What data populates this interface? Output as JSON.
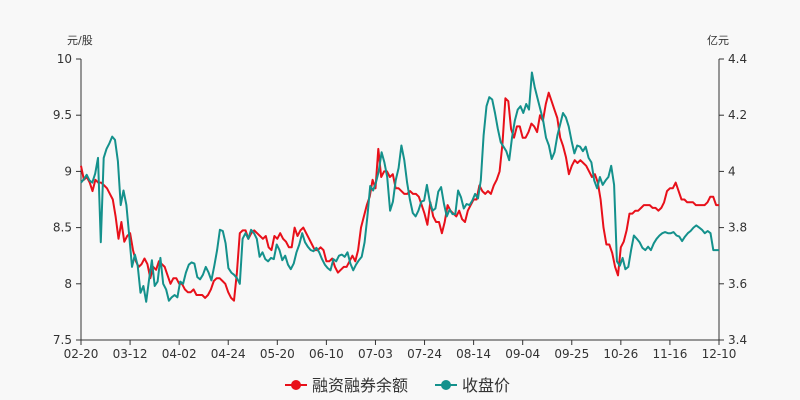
{
  "chart_data": {
    "type": "line",
    "title": "",
    "left_axis": {
      "unit": "元/股",
      "ylim": [
        7.5,
        10
      ],
      "ticks": [
        "7.5",
        "8",
        "8.5",
        "9",
        "9.5",
        "10"
      ]
    },
    "right_axis": {
      "unit": "亿元",
      "ylim": [
        3.4,
        4.4
      ],
      "ticks": [
        "3.4",
        "3.6",
        "3.8",
        "4",
        "4.2",
        "4.4"
      ]
    },
    "x_tick_labels": [
      "02-20",
      "03-12",
      "04-02",
      "04-24",
      "05-20",
      "06-10",
      "07-03",
      "07-24",
      "08-14",
      "09-04",
      "09-25",
      "10-26",
      "11-16",
      "12-10"
    ],
    "grid": false,
    "legend_position": "bottom-center",
    "series": [
      {
        "name": "融资融券余额",
        "axis": "right",
        "color": "#e8101a",
        "values": [
          4.02,
          3.97,
          3.98,
          3.96,
          3.93,
          3.97,
          3.96,
          3.96,
          3.95,
          3.94,
          3.92,
          3.9,
          3.84,
          3.76,
          3.82,
          3.75,
          3.77,
          3.78,
          3.72,
          3.68,
          3.66,
          3.67,
          3.69,
          3.67,
          3.62,
          3.66,
          3.65,
          3.68,
          3.67,
          3.66,
          3.63,
          3.6,
          3.62,
          3.62,
          3.6,
          3.6,
          3.58,
          3.57,
          3.57,
          3.58,
          3.56,
          3.56,
          3.56,
          3.55,
          3.56,
          3.58,
          3.61,
          3.62,
          3.62,
          3.61,
          3.6,
          3.57,
          3.55,
          3.54,
          3.64,
          3.78,
          3.79,
          3.79,
          3.76,
          3.78,
          3.79,
          3.78,
          3.77,
          3.76,
          3.77,
          3.73,
          3.72,
          3.77,
          3.76,
          3.78,
          3.76,
          3.75,
          3.73,
          3.73,
          3.8,
          3.77,
          3.79,
          3.8,
          3.78,
          3.76,
          3.74,
          3.72,
          3.72,
          3.73,
          3.72,
          3.68,
          3.68,
          3.69,
          3.66,
          3.64,
          3.65,
          3.66,
          3.66,
          3.68,
          3.7,
          3.68,
          3.72,
          3.8,
          3.84,
          3.88,
          3.91,
          3.97,
          3.94,
          4.08,
          3.98,
          4.0,
          4.0,
          3.98,
          3.99,
          3.94,
          3.94,
          3.93,
          3.92,
          3.92,
          3.93,
          3.92,
          3.92,
          3.91,
          3.88,
          3.85,
          3.81,
          3.89,
          3.84,
          3.82,
          3.82,
          3.78,
          3.82,
          3.88,
          3.86,
          3.85,
          3.84,
          3.86,
          3.83,
          3.82,
          3.86,
          3.88,
          3.9,
          3.9,
          3.95,
          3.93,
          3.92,
          3.93,
          3.92,
          3.95,
          3.97,
          4.0,
          4.1,
          4.26,
          4.25,
          4.15,
          4.12,
          4.16,
          4.16,
          4.12,
          4.12,
          4.14,
          4.17,
          4.16,
          4.14,
          4.2,
          4.18,
          4.24,
          4.28,
          4.25,
          4.22,
          4.19,
          4.12,
          4.09,
          4.05,
          3.99,
          4.02,
          4.04,
          4.03,
          4.04,
          4.03,
          4.02,
          4.0,
          3.98,
          3.99,
          3.96,
          3.9,
          3.8,
          3.74,
          3.74,
          3.71,
          3.66,
          3.63,
          3.73,
          3.75,
          3.79,
          3.85,
          3.85,
          3.86,
          3.86,
          3.87,
          3.88,
          3.88,
          3.88,
          3.87,
          3.87,
          3.86,
          3.87,
          3.89,
          3.93,
          3.94,
          3.94,
          3.96,
          3.93,
          3.9,
          3.9,
          3.89,
          3.89,
          3.89,
          3.88,
          3.88,
          3.88,
          3.88,
          3.89,
          3.91,
          3.91,
          3.88,
          3.88
        ]
      },
      {
        "name": "收盘价",
        "axis": "left",
        "color": "#14918c",
        "values": [
          8.9,
          8.93,
          8.97,
          8.92,
          8.9,
          8.98,
          9.12,
          8.37,
          9.12,
          9.2,
          9.25,
          9.31,
          9.28,
          9.09,
          8.7,
          8.83,
          8.7,
          8.43,
          8.15,
          8.26,
          8.16,
          7.92,
          7.98,
          7.84,
          8.04,
          8.21,
          7.98,
          8.02,
          8.23,
          8.0,
          7.95,
          7.85,
          7.88,
          7.9,
          7.88,
          8.02,
          8.0,
          8.1,
          8.17,
          8.19,
          8.18,
          8.06,
          8.04,
          8.08,
          8.15,
          8.1,
          8.03,
          8.16,
          8.3,
          8.48,
          8.47,
          8.36,
          8.14,
          8.1,
          8.08,
          8.05,
          8.0,
          8.4,
          8.45,
          8.4,
          8.48,
          8.45,
          8.4,
          8.24,
          8.28,
          8.22,
          8.2,
          8.23,
          8.22,
          8.35,
          8.3,
          8.21,
          8.25,
          8.17,
          8.13,
          8.18,
          8.28,
          8.35,
          8.45,
          8.37,
          8.33,
          8.3,
          8.29,
          8.32,
          8.28,
          8.22,
          8.17,
          8.14,
          8.12,
          8.22,
          8.2,
          8.25,
          8.26,
          8.24,
          8.28,
          8.18,
          8.12,
          8.17,
          8.21,
          8.24,
          8.37,
          8.6,
          8.87,
          8.83,
          8.9,
          9.0,
          9.17,
          9.08,
          8.95,
          8.65,
          8.73,
          8.92,
          9.03,
          9.23,
          9.1,
          8.9,
          8.75,
          8.63,
          8.6,
          8.65,
          8.73,
          8.74,
          8.88,
          8.73,
          8.65,
          8.67,
          8.82,
          8.86,
          8.71,
          8.6,
          8.66,
          8.62,
          8.62,
          8.83,
          8.77,
          8.67,
          8.71,
          8.7,
          8.74,
          8.8,
          8.76,
          8.92,
          9.32,
          9.58,
          9.66,
          9.64,
          9.52,
          9.38,
          9.26,
          9.22,
          9.18,
          9.1,
          9.3,
          9.45,
          9.55,
          9.58,
          9.52,
          9.6,
          9.55,
          9.88,
          9.75,
          9.65,
          9.55,
          9.45,
          9.3,
          9.23,
          9.11,
          9.17,
          9.32,
          9.42,
          9.52,
          9.48,
          9.4,
          9.27,
          9.16,
          9.23,
          9.22,
          9.18,
          9.22,
          9.12,
          9.08,
          8.92,
          8.85,
          8.95,
          8.88,
          8.92,
          8.95,
          9.05,
          8.88,
          8.2,
          8.16,
          8.23,
          8.13,
          8.15,
          8.3,
          8.43,
          8.4,
          8.37,
          8.32,
          8.3,
          8.33,
          8.3,
          8.36,
          8.4,
          8.43,
          8.45,
          8.46,
          8.45,
          8.45,
          8.46,
          8.43,
          8.42,
          8.38,
          8.42,
          8.45,
          8.47,
          8.5,
          8.52,
          8.5,
          8.48,
          8.45,
          8.47,
          8.45,
          8.3,
          8.3,
          8.3
        ]
      }
    ]
  }
}
